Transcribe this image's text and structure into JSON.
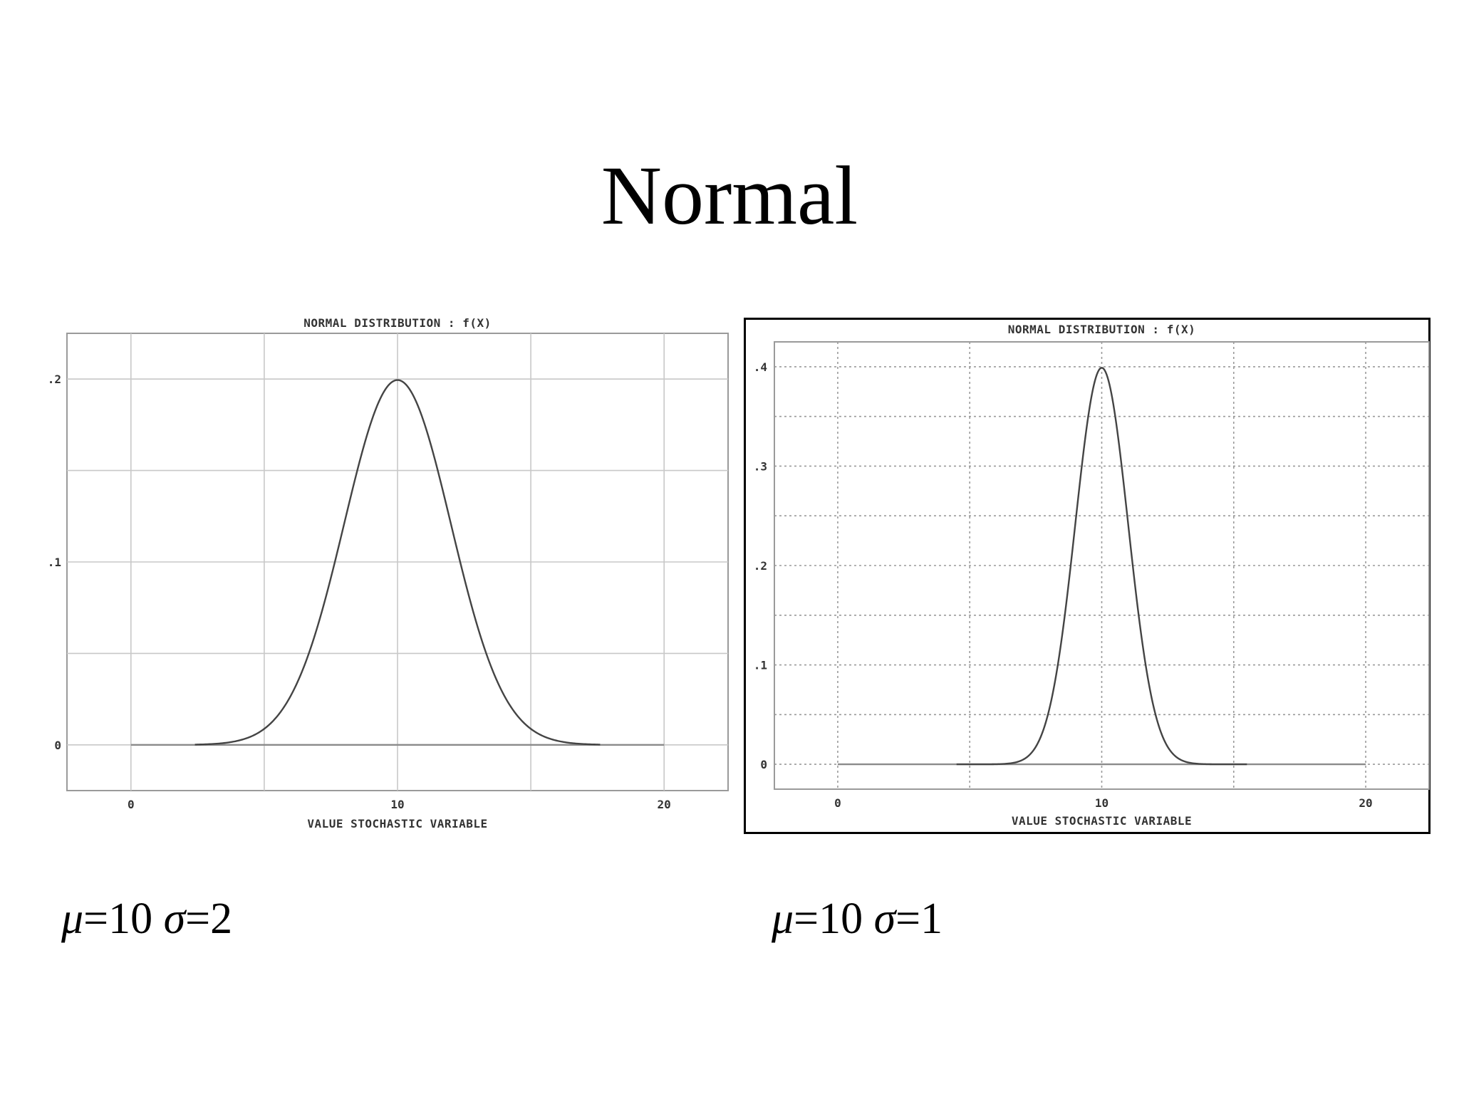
{
  "slide": {
    "title": "Normal"
  },
  "params": [
    {
      "mu_symbol": "μ",
      "mu_value": "=10",
      "sigma_symbol": "σ",
      "sigma_value": "=2"
    },
    {
      "mu_symbol": "μ",
      "mu_value": "=10",
      "sigma_symbol": "σ",
      "sigma_value": "=1"
    }
  ],
  "chart_data": [
    {
      "type": "line",
      "title": "NORMAL DISTRIBUTION : f(X)",
      "xlabel": "VALUE STOCHASTIC VARIABLE",
      "ylabel": "",
      "distribution": {
        "mean": 10,
        "sd": 2
      },
      "curve_x_range": [
        2.4,
        17.6
      ],
      "baseline_x_range": [
        0,
        20
      ],
      "xlim": [
        -2.4,
        22.4
      ],
      "ylim": [
        -0.025,
        0.225
      ],
      "xticks": [
        0,
        10,
        20
      ],
      "xtick_labels": [
        "0",
        "10",
        "20"
      ],
      "yticks": [
        0,
        0.1,
        0.2
      ],
      "ytick_labels": [
        "0",
        ".1",
        ".2"
      ],
      "x_gridlines": [
        0,
        5,
        10,
        15,
        20
      ],
      "y_gridlines": [
        0,
        0.05,
        0.1,
        0.15,
        0.2
      ],
      "grid": true,
      "grid_style": "solid",
      "framed": false,
      "line_color": "#444444",
      "grid_color": "#c8c8c8"
    },
    {
      "type": "line",
      "title": "NORMAL DISTRIBUTION : f(X)",
      "xlabel": "VALUE STOCHASTIC VARIABLE",
      "ylabel": "",
      "distribution": {
        "mean": 10,
        "sd": 1
      },
      "curve_x_range": [
        4.5,
        15.5
      ],
      "baseline_x_range": [
        0,
        20
      ],
      "xlim": [
        -2.4,
        22.4
      ],
      "ylim": [
        -0.025,
        0.425
      ],
      "xticks": [
        0,
        10,
        20
      ],
      "xtick_labels": [
        "0",
        "10",
        "20"
      ],
      "yticks": [
        0,
        0.1,
        0.2,
        0.3,
        0.4
      ],
      "ytick_labels": [
        "0",
        ".1",
        ".2",
        ".3",
        ".4"
      ],
      "x_gridlines": [
        0,
        5,
        10,
        15,
        20
      ],
      "y_gridlines": [
        0,
        0.05,
        0.1,
        0.15,
        0.2,
        0.25,
        0.3,
        0.35,
        0.4
      ],
      "grid": true,
      "grid_style": "dotted",
      "framed": true,
      "line_color": "#444444",
      "grid_color": "#9a9a9a"
    }
  ]
}
